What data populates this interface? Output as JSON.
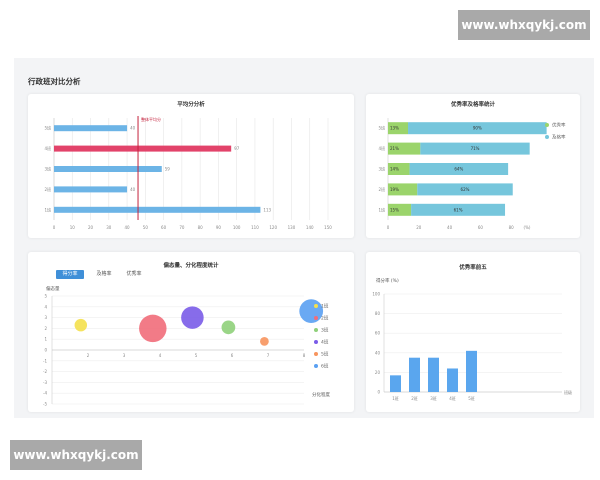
{
  "page_title": "行政班对比分析",
  "watermark": "www.whxqykj.com",
  "colors": {
    "blue": "#6cb4e6",
    "pink": "#e2436a",
    "green": "#9bd46b",
    "teal": "#76c6dc"
  },
  "chart_data": [
    {
      "type": "bar",
      "orientation": "horizontal",
      "title": "平均分分析",
      "categories": [
        "1班",
        "2班",
        "3班",
        "4班",
        "5班"
      ],
      "category_labels": [
        "1班",
        "2班",
        "3班",
        "4班",
        "5班"
      ],
      "values": [
        113,
        40,
        59,
        97,
        40
      ],
      "value_labels": [
        "113",
        "40",
        "59",
        "97",
        "40"
      ],
      "highlight_index": 3,
      "reference_line": {
        "label": "整体平均分",
        "value": 46
      },
      "xlim": [
        0,
        150
      ],
      "xticks": [
        "0",
        "10",
        "20",
        "30",
        "40",
        "50",
        "60",
        "70",
        "80",
        "90",
        "100",
        "110",
        "120",
        "130",
        "140",
        "150"
      ],
      "grid": true
    },
    {
      "type": "bar",
      "orientation": "horizontal",
      "stacked": true,
      "title": "优秀率及格率统计",
      "categories": [
        "1班",
        "2班",
        "3班",
        "4班",
        "5班"
      ],
      "series": [
        {
          "name": "优秀率",
          "values": [
            15,
            19,
            14,
            21,
            13
          ],
          "labels": [
            "15%",
            "19%",
            "14%",
            "21%",
            "13%"
          ]
        },
        {
          "name": "及格率",
          "values": [
            61,
            62,
            64,
            71,
            90
          ],
          "labels": [
            "61%",
            "62%",
            "64%",
            "71%",
            "90%"
          ]
        }
      ],
      "xlim": [
        0,
        100
      ],
      "xticks": [
        "0",
        "20",
        "40",
        "60",
        "80"
      ],
      "xunit": "(%)",
      "legend": "right"
    },
    {
      "type": "scatter",
      "bubble": true,
      "title": "偏态量、分化程度统计",
      "tabs": [
        "得分率",
        "及格率",
        "优秀率"
      ],
      "active_tab": 0,
      "ylabel": "偏态量",
      "xlabel": "分化程度",
      "xlim": [
        1,
        8
      ],
      "ylim": [
        -5,
        5
      ],
      "xticks": [
        "2",
        "3",
        "4",
        "5",
        "6",
        "7",
        "8"
      ],
      "yticks": [
        "5",
        "4",
        "3",
        "2",
        "1",
        "0",
        "-1",
        "-2",
        "-3",
        "-4",
        "-5"
      ],
      "points": [
        {
          "name": "1班",
          "x": 1.8,
          "y": 2.3,
          "size": 5,
          "color": "#f4e04d"
        },
        {
          "name": "2班",
          "x": 3.8,
          "y": 2.0,
          "size": 11,
          "color": "#f16d7a"
        },
        {
          "name": "3班",
          "x": 5.9,
          "y": 2.1,
          "size": 5.5,
          "color": "#8fd07a"
        },
        {
          "name": "4班",
          "x": 4.9,
          "y": 3.0,
          "size": 9,
          "color": "#7a5ce8"
        },
        {
          "name": "5班",
          "x": 6.9,
          "y": 0.8,
          "size": 3.5,
          "color": "#f7955e"
        },
        {
          "name": "6班",
          "x": 8.2,
          "y": 3.6,
          "size": 9.5,
          "color": "#5aa0f2"
        }
      ],
      "legend": "right"
    },
    {
      "type": "bar",
      "title": "优秀率前五",
      "categories": [
        "1班",
        "2班",
        "3班",
        "4班",
        "5班"
      ],
      "values": [
        17,
        35,
        35,
        24,
        42
      ],
      "ylabel": "得分率 (%)",
      "xlabel": "班级",
      "ylim": [
        0,
        100
      ],
      "yticks": [
        "0",
        "20",
        "40",
        "60",
        "80",
        "100"
      ]
    }
  ]
}
